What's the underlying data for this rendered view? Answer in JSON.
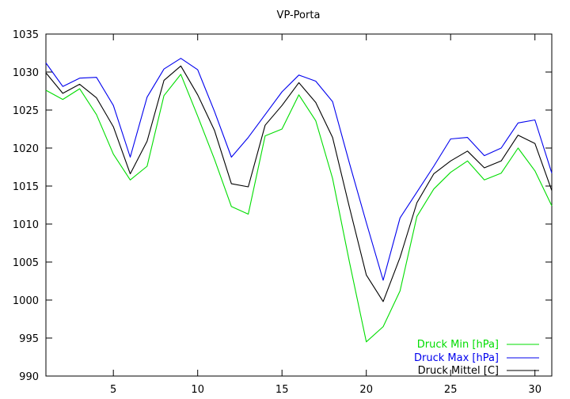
{
  "chart_data": {
    "type": "line",
    "title": "VP-Porta",
    "xlabel": "",
    "ylabel": "",
    "xlim": [
      1,
      31
    ],
    "ylim": [
      990,
      1035
    ],
    "x_ticks": [
      5,
      10,
      15,
      20,
      25,
      30
    ],
    "y_ticks": [
      990,
      995,
      1000,
      1005,
      1010,
      1015,
      1020,
      1025,
      1030,
      1035
    ],
    "grid": false,
    "legend_position": "bottom-right",
    "x": [
      1,
      2,
      3,
      4,
      5,
      6,
      7,
      8,
      9,
      10,
      11,
      12,
      13,
      14,
      15,
      16,
      17,
      18,
      19,
      20,
      21,
      22,
      23,
      24,
      25,
      26,
      27,
      28,
      29,
      30,
      31
    ],
    "series": [
      {
        "name": "Druck Min [hPa]",
        "color": "#00dd00",
        "values": [
          1027.6,
          1026.4,
          1027.8,
          1024.4,
          1019.2,
          1015.8,
          1017.6,
          1026.9,
          1029.7,
          1024.2,
          1018.5,
          1012.3,
          1011.3,
          1021.6,
          1022.5,
          1027.0,
          1023.6,
          1016.0,
          1005.0,
          994.5,
          996.5,
          1001.2,
          1011.0,
          1014.6,
          1016.8,
          1018.3,
          1015.8,
          1016.7,
          1020.0,
          1017.0,
          1012.4
        ]
      },
      {
        "name": "Druck Max [hPa]",
        "color": "#0000ee",
        "values": [
          1031.2,
          1028.1,
          1029.2,
          1029.3,
          1025.6,
          1018.8,
          1026.7,
          1030.4,
          1031.8,
          1030.3,
          1024.8,
          1018.8,
          1021.4,
          1024.4,
          1027.4,
          1029.6,
          1028.8,
          1026.1,
          1018.0,
          1010.2,
          1002.6,
          1010.8,
          1014.2,
          1017.6,
          1021.2,
          1021.4,
          1019.0,
          1020.0,
          1023.3,
          1023.7,
          1016.7
        ]
      },
      {
        "name": "Druck Mittel [C]",
        "color": "#000000",
        "values": [
          1029.9,
          1027.2,
          1028.4,
          1026.6,
          1022.8,
          1016.6,
          1020.9,
          1028.9,
          1030.8,
          1027.0,
          1022.3,
          1015.3,
          1014.9,
          1023.0,
          1025.6,
          1028.6,
          1026.0,
          1021.4,
          1012.2,
          1003.3,
          999.8,
          1005.6,
          1012.8,
          1016.6,
          1018.3,
          1019.6,
          1017.4,
          1018.3,
          1021.7,
          1020.6,
          1014.4
        ]
      }
    ]
  }
}
